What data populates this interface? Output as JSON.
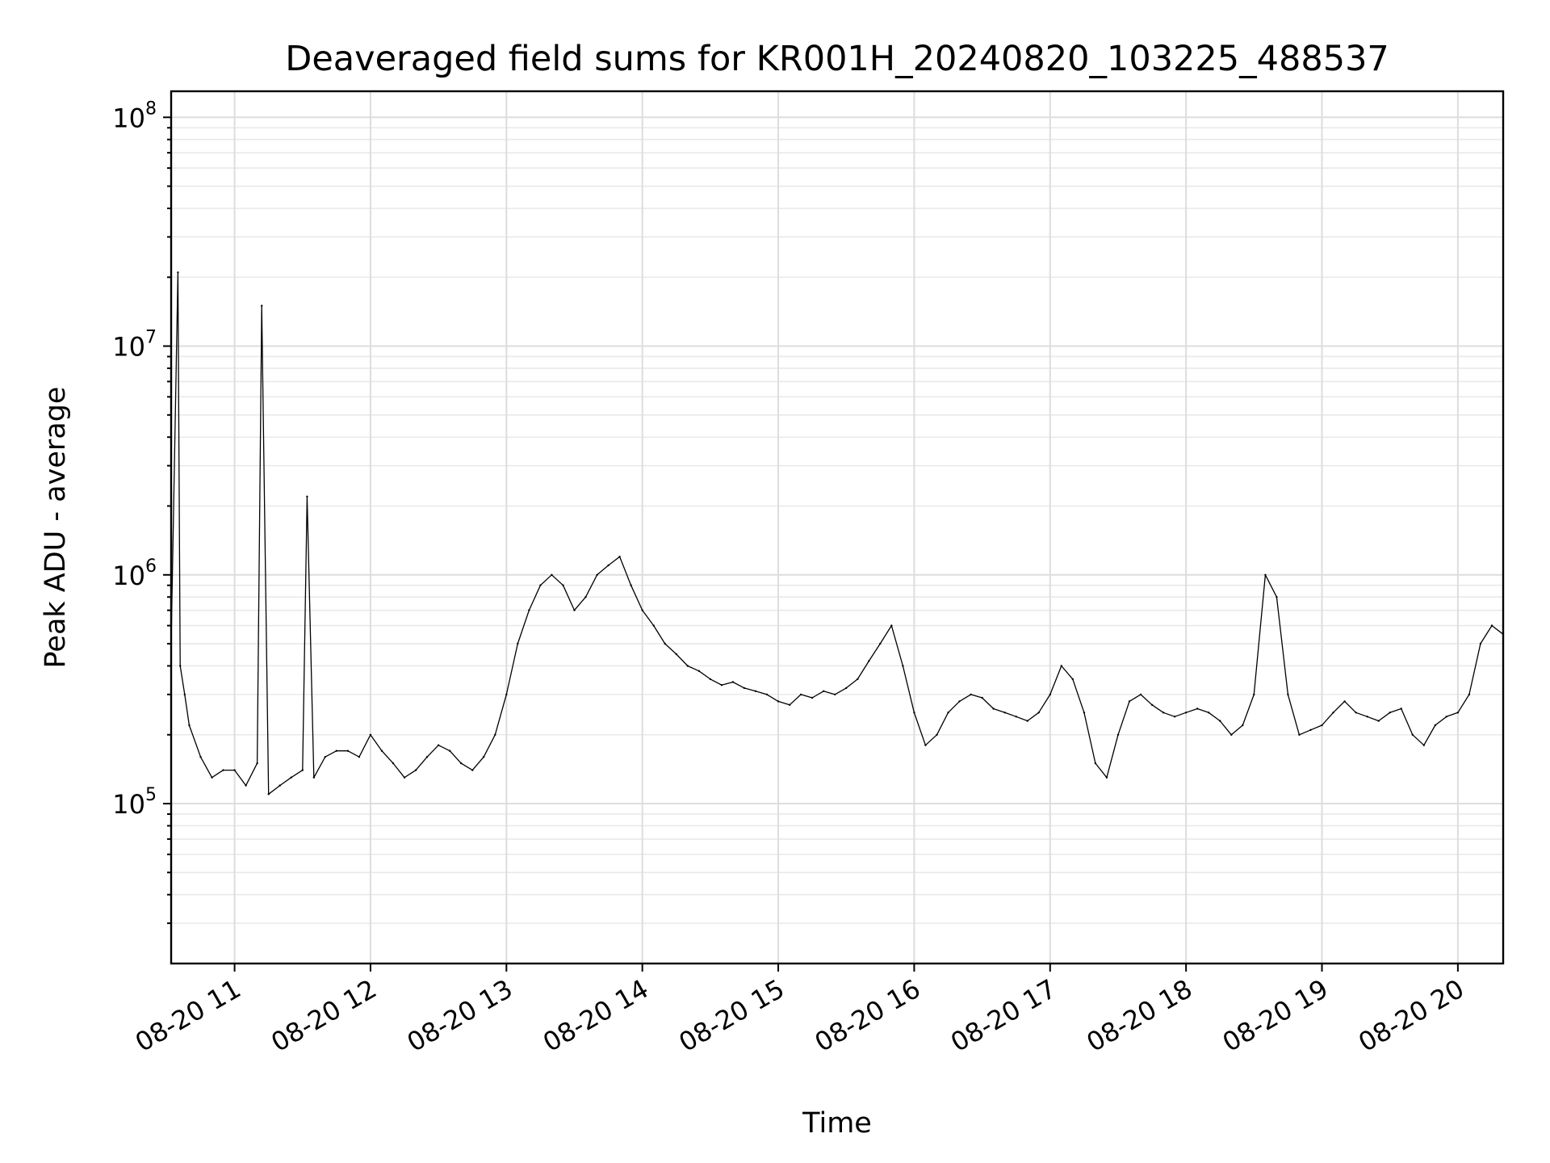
{
  "chart_data": {
    "type": "line",
    "title": "Deaveraged field sums for KR001H_20240820_103225_488537",
    "xlabel": "Time",
    "ylabel": "Peak ADU - average",
    "yscale": "log",
    "ylim": [
      20000,
      130000000
    ],
    "xlim": [
      "2024-08-20 10:32",
      "2024-08-20 20:20"
    ],
    "grid": "on (major and minor)",
    "legend": "none",
    "line_color": "#000000",
    "y_ticks": [
      {
        "base": "10",
        "exp": "5",
        "value": 100000
      },
      {
        "base": "10",
        "exp": "6",
        "value": 1000000
      },
      {
        "base": "10",
        "exp": "7",
        "value": 10000000
      },
      {
        "base": "10",
        "exp": "8",
        "value": 100000000
      }
    ],
    "x_ticks": [
      {
        "label": "08-20 11",
        "time": "2024-08-20 11:00"
      },
      {
        "label": "08-20 12",
        "time": "2024-08-20 12:00"
      },
      {
        "label": "08-20 13",
        "time": "2024-08-20 13:00"
      },
      {
        "label": "08-20 14",
        "time": "2024-08-20 14:00"
      },
      {
        "label": "08-20 15",
        "time": "2024-08-20 15:00"
      },
      {
        "label": "08-20 16",
        "time": "2024-08-20 16:00"
      },
      {
        "label": "08-20 17",
        "time": "2024-08-20 17:00"
      },
      {
        "label": "08-20 18",
        "time": "2024-08-20 18:00"
      },
      {
        "label": "08-20 19",
        "time": "2024-08-20 19:00"
      },
      {
        "label": "08-20 20",
        "time": "2024-08-20 20:00"
      }
    ],
    "series": [
      {
        "x": [
          "2024-08-20 10:32",
          "2024-08-20 10:35",
          "2024-08-20 10:36",
          "2024-08-20 10:38",
          "2024-08-20 10:40",
          "2024-08-20 10:45",
          "2024-08-20 10:50",
          "2024-08-20 10:55",
          "2024-08-20 11:00",
          "2024-08-20 11:05",
          "2024-08-20 11:10",
          "2024-08-20 11:12",
          "2024-08-20 11:15",
          "2024-08-20 11:20",
          "2024-08-20 11:25",
          "2024-08-20 11:30",
          "2024-08-20 11:32",
          "2024-08-20 11:35",
          "2024-08-20 11:40",
          "2024-08-20 11:45",
          "2024-08-20 11:50",
          "2024-08-20 11:55",
          "2024-08-20 12:00",
          "2024-08-20 12:05",
          "2024-08-20 12:10",
          "2024-08-20 12:15",
          "2024-08-20 12:20",
          "2024-08-20 12:25",
          "2024-08-20 12:30",
          "2024-08-20 12:35",
          "2024-08-20 12:40",
          "2024-08-20 12:45",
          "2024-08-20 12:50",
          "2024-08-20 12:55",
          "2024-08-20 13:00",
          "2024-08-20 13:05",
          "2024-08-20 13:10",
          "2024-08-20 13:15",
          "2024-08-20 13:20",
          "2024-08-20 13:25",
          "2024-08-20 13:30",
          "2024-08-20 13:35",
          "2024-08-20 13:40",
          "2024-08-20 13:45",
          "2024-08-20 13:50",
          "2024-08-20 13:55",
          "2024-08-20 14:00",
          "2024-08-20 14:05",
          "2024-08-20 14:10",
          "2024-08-20 14:15",
          "2024-08-20 14:20",
          "2024-08-20 14:25",
          "2024-08-20 14:30",
          "2024-08-20 14:35",
          "2024-08-20 14:40",
          "2024-08-20 14:45",
          "2024-08-20 14:50",
          "2024-08-20 14:55",
          "2024-08-20 15:00",
          "2024-08-20 15:05",
          "2024-08-20 15:10",
          "2024-08-20 15:15",
          "2024-08-20 15:20",
          "2024-08-20 15:25",
          "2024-08-20 15:30",
          "2024-08-20 15:35",
          "2024-08-20 15:40",
          "2024-08-20 15:45",
          "2024-08-20 15:50",
          "2024-08-20 15:55",
          "2024-08-20 16:00",
          "2024-08-20 16:05",
          "2024-08-20 16:10",
          "2024-08-20 16:15",
          "2024-08-20 16:20",
          "2024-08-20 16:25",
          "2024-08-20 16:30",
          "2024-08-20 16:35",
          "2024-08-20 16:40",
          "2024-08-20 16:45",
          "2024-08-20 16:50",
          "2024-08-20 16:55",
          "2024-08-20 17:00",
          "2024-08-20 17:05",
          "2024-08-20 17:10",
          "2024-08-20 17:15",
          "2024-08-20 17:20",
          "2024-08-20 17:25",
          "2024-08-20 17:30",
          "2024-08-20 17:35",
          "2024-08-20 17:40",
          "2024-08-20 17:45",
          "2024-08-20 17:50",
          "2024-08-20 17:55",
          "2024-08-20 18:00",
          "2024-08-20 18:05",
          "2024-08-20 18:10",
          "2024-08-20 18:15",
          "2024-08-20 18:20",
          "2024-08-20 18:25",
          "2024-08-20 18:30",
          "2024-08-20 18:35",
          "2024-08-20 18:40",
          "2024-08-20 18:45",
          "2024-08-20 18:50",
          "2024-08-20 18:55",
          "2024-08-20 19:00",
          "2024-08-20 19:05",
          "2024-08-20 19:10",
          "2024-08-20 19:15",
          "2024-08-20 19:20",
          "2024-08-20 19:25",
          "2024-08-20 19:30",
          "2024-08-20 19:35",
          "2024-08-20 19:40",
          "2024-08-20 19:45",
          "2024-08-20 19:50",
          "2024-08-20 19:55",
          "2024-08-20 20:00",
          "2024-08-20 20:05",
          "2024-08-20 20:10",
          "2024-08-20 20:15",
          "2024-08-20 20:20"
        ],
        "y": [
          500000,
          21000000,
          400000,
          300000,
          220000,
          160000,
          130000,
          140000,
          140000,
          120000,
          150000,
          15000000,
          110000,
          120000,
          130000,
          140000,
          2200000,
          130000,
          160000,
          170000,
          170000,
          160000,
          200000,
          170000,
          150000,
          130000,
          140000,
          160000,
          180000,
          170000,
          150000,
          140000,
          160000,
          200000,
          300000,
          500000,
          700000,
          900000,
          1000000,
          900000,
          700000,
          800000,
          1000000,
          1100000,
          1200000,
          900000,
          700000,
          600000,
          500000,
          450000,
          400000,
          380000,
          350000,
          330000,
          340000,
          320000,
          310000,
          300000,
          280000,
          270000,
          300000,
          290000,
          310000,
          300000,
          320000,
          350000,
          420000,
          500000,
          600000,
          400000,
          250000,
          180000,
          200000,
          250000,
          280000,
          300000,
          290000,
          260000,
          250000,
          240000,
          230000,
          250000,
          300000,
          400000,
          350000,
          250000,
          150000,
          130000,
          200000,
          280000,
          300000,
          270000,
          250000,
          240000,
          250000,
          260000,
          250000,
          230000,
          200000,
          220000,
          300000,
          1000000,
          800000,
          300000,
          200000,
          210000,
          220000,
          250000,
          280000,
          250000,
          240000,
          230000,
          250000,
          260000,
          200000,
          180000,
          220000,
          240000,
          250000,
          300000,
          500000,
          600000,
          550000
        ]
      }
    ]
  }
}
